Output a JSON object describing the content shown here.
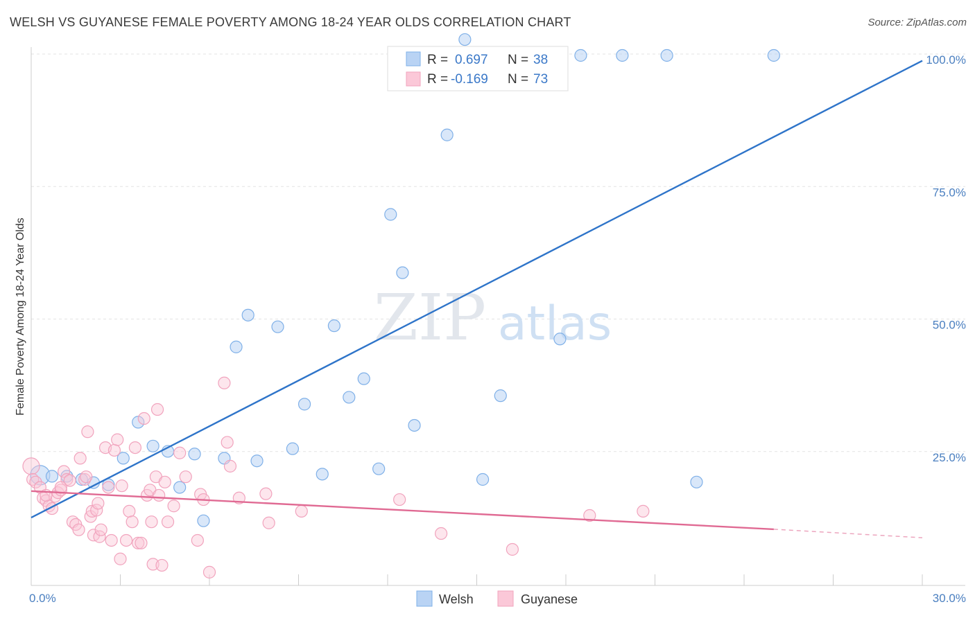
{
  "title": "WELSH VS GUYANESE FEMALE POVERTY AMONG 18-24 YEAR OLDS CORRELATION CHART",
  "source": "Source: ZipAtlas.com",
  "watermark": {
    "zip": "ZIP",
    "atlas": "atlas"
  },
  "chart_data": {
    "type": "scatter",
    "ylabel": "Female Poverty Among 18-24 Year Olds",
    "xlim": [
      0,
      30
    ],
    "ylim": [
      0,
      100
    ],
    "x_tick_labels": [
      {
        "value": 0,
        "label": "0.0%"
      },
      {
        "value": 30,
        "label": "30.0%"
      }
    ],
    "y_tick_labels": [
      {
        "value": 25,
        "label": "25.0%"
      },
      {
        "value": 50,
        "label": "50.0%"
      },
      {
        "value": 75,
        "label": "75.0%"
      },
      {
        "value": 100,
        "label": "100.0%"
      }
    ],
    "legend": [
      {
        "r_label": "R =",
        "r_value": "0.697",
        "n_label": "N =",
        "n_value": "38"
      },
      {
        "r_label": "R =",
        "r_value": "-0.169",
        "n_label": "N =",
        "n_value": "73"
      }
    ],
    "series": [
      {
        "name": "Welsh",
        "color": "#7fb0e8",
        "line_color": "#2e74c9",
        "trend": {
          "x0": 0,
          "y0": 12.8,
          "x1": 30,
          "y1": 99
        },
        "points": [
          [
            0.3,
            20.8
          ],
          [
            0.7,
            20.6
          ],
          [
            1.2,
            20.6
          ],
          [
            1.7,
            20.0
          ],
          [
            2.1,
            19.4
          ],
          [
            2.6,
            19.0
          ],
          [
            3.1,
            24.0
          ],
          [
            3.6,
            30.8
          ],
          [
            4.1,
            26.3
          ],
          [
            4.6,
            25.3
          ],
          [
            5.0,
            18.5
          ],
          [
            5.5,
            24.8
          ],
          [
            5.8,
            12.2
          ],
          [
            6.5,
            24.0
          ],
          [
            6.9,
            45.0
          ],
          [
            7.3,
            51.0
          ],
          [
            7.6,
            23.5
          ],
          [
            8.3,
            48.8
          ],
          [
            8.8,
            25.8
          ],
          [
            9.2,
            34.2
          ],
          [
            9.8,
            21.0
          ],
          [
            10.2,
            49.0
          ],
          [
            10.7,
            35.5
          ],
          [
            11.2,
            39.0
          ],
          [
            11.7,
            22.0
          ],
          [
            12.1,
            70.0
          ],
          [
            12.5,
            59.0
          ],
          [
            12.9,
            30.2
          ],
          [
            14.0,
            85.0
          ],
          [
            14.6,
            103.0
          ],
          [
            15.2,
            20.0
          ],
          [
            15.8,
            35.8
          ],
          [
            17.8,
            46.5
          ],
          [
            18.5,
            100.0
          ],
          [
            19.9,
            100.0
          ],
          [
            21.4,
            100.0
          ],
          [
            22.4,
            19.5
          ],
          [
            25.0,
            100.0
          ]
        ]
      },
      {
        "name": "Guyanese",
        "color": "#f1a3bd",
        "line_color": "#e06a93",
        "trend": {
          "x0": 0,
          "y0": 17.8,
          "x1": 25.0,
          "y1": 10.6
        },
        "trend_dashed_to": {
          "x": 30,
          "y": 9.0
        },
        "points": [
          [
            0.0,
            22.5
          ],
          [
            0.05,
            20.0
          ],
          [
            0.15,
            19.5
          ],
          [
            0.3,
            18.5
          ],
          [
            0.4,
            16.5
          ],
          [
            0.5,
            16.0
          ],
          [
            0.6,
            15.0
          ],
          [
            0.7,
            14.5
          ],
          [
            0.8,
            16.8
          ],
          [
            0.9,
            17.5
          ],
          [
            1.0,
            18.0
          ],
          [
            1.1,
            21.5
          ],
          [
            1.2,
            20.0
          ],
          [
            1.3,
            19.8
          ],
          [
            1.4,
            12.0
          ],
          [
            1.5,
            11.5
          ],
          [
            1.6,
            10.5
          ],
          [
            1.65,
            24.0
          ],
          [
            1.8,
            20.0
          ],
          [
            1.85,
            20.5
          ],
          [
            1.9,
            29.0
          ],
          [
            2.0,
            13.0
          ],
          [
            2.05,
            14.0
          ],
          [
            2.1,
            9.5
          ],
          [
            2.2,
            14.2
          ],
          [
            2.25,
            15.5
          ],
          [
            2.3,
            9.2
          ],
          [
            2.35,
            10.5
          ],
          [
            2.5,
            26.0
          ],
          [
            2.6,
            18.5
          ],
          [
            2.7,
            8.5
          ],
          [
            2.8,
            25.5
          ],
          [
            2.9,
            27.5
          ],
          [
            3.0,
            5.0
          ],
          [
            3.05,
            18.8
          ],
          [
            3.2,
            8.5
          ],
          [
            3.3,
            14.0
          ],
          [
            3.4,
            12.0
          ],
          [
            3.5,
            26.0
          ],
          [
            3.6,
            8.0
          ],
          [
            3.7,
            8.0
          ],
          [
            3.8,
            31.5
          ],
          [
            3.9,
            17.0
          ],
          [
            4.0,
            18.0
          ],
          [
            4.05,
            12.0
          ],
          [
            4.1,
            4.0
          ],
          [
            4.2,
            20.5
          ],
          [
            4.25,
            33.2
          ],
          [
            4.3,
            17.0
          ],
          [
            4.4,
            3.8
          ],
          [
            4.5,
            19.5
          ],
          [
            4.6,
            12.0
          ],
          [
            4.8,
            15.0
          ],
          [
            5.0,
            25.0
          ],
          [
            5.2,
            20.5
          ],
          [
            5.6,
            8.5
          ],
          [
            5.7,
            17.2
          ],
          [
            5.8,
            16.2
          ],
          [
            6.0,
            2.5
          ],
          [
            6.5,
            38.2
          ],
          [
            6.6,
            27.0
          ],
          [
            6.7,
            22.5
          ],
          [
            7.0,
            16.5
          ],
          [
            7.9,
            17.3
          ],
          [
            8.0,
            11.8
          ],
          [
            9.1,
            14.0
          ],
          [
            12.4,
            16.2
          ],
          [
            13.8,
            9.8
          ],
          [
            16.2,
            6.8
          ],
          [
            18.8,
            13.2
          ],
          [
            20.6,
            14.0
          ],
          [
            0.5,
            17.0
          ],
          [
            1.0,
            18.5
          ]
        ]
      }
    ]
  }
}
